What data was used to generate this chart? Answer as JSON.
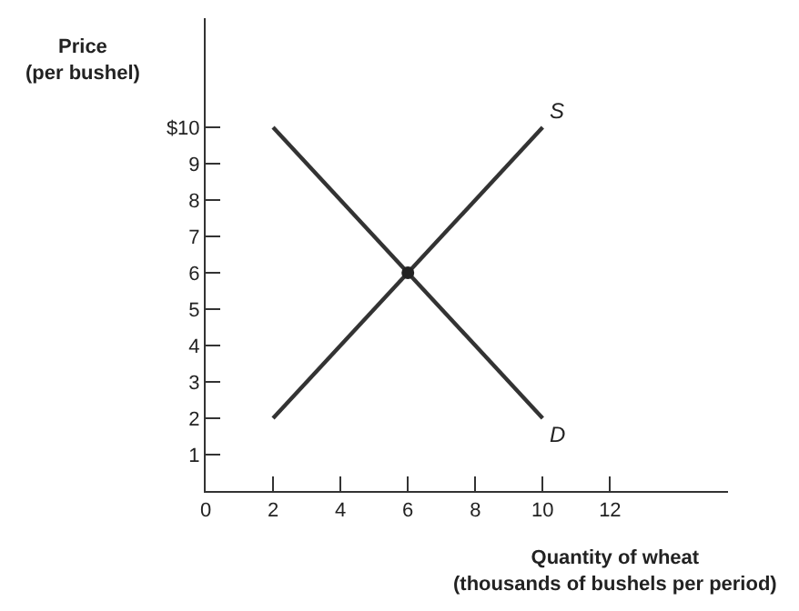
{
  "chart_data": {
    "type": "line",
    "xlabel": "Quantity of wheat\n(thousands of bushels per period)",
    "ylabel": "Price\n(per bushel)",
    "series": [
      {
        "name": "S",
        "color": "#333333",
        "x": [
          2,
          10
        ],
        "values": [
          2,
          10
        ]
      },
      {
        "name": "D",
        "color": "#333333",
        "x": [
          2,
          10
        ],
        "values": [
          10,
          2
        ]
      },
      {
        "type": "scatter",
        "color": "#222222",
        "x": [
          6
        ],
        "values": [
          6
        ],
        "marker": "circle"
      }
    ],
    "xlim": [
      0,
      15.5
    ],
    "ylim": [
      0,
      13
    ],
    "xticks": [
      0,
      2,
      4,
      6,
      8,
      10,
      12
    ],
    "yticks": [
      1,
      2,
      3,
      4,
      5,
      6,
      7,
      8,
      9,
      {
        "value": 10,
        "label": "$10"
      }
    ],
    "grid": false,
    "legend": false,
    "marker": "none",
    "line_style": "solid"
  }
}
